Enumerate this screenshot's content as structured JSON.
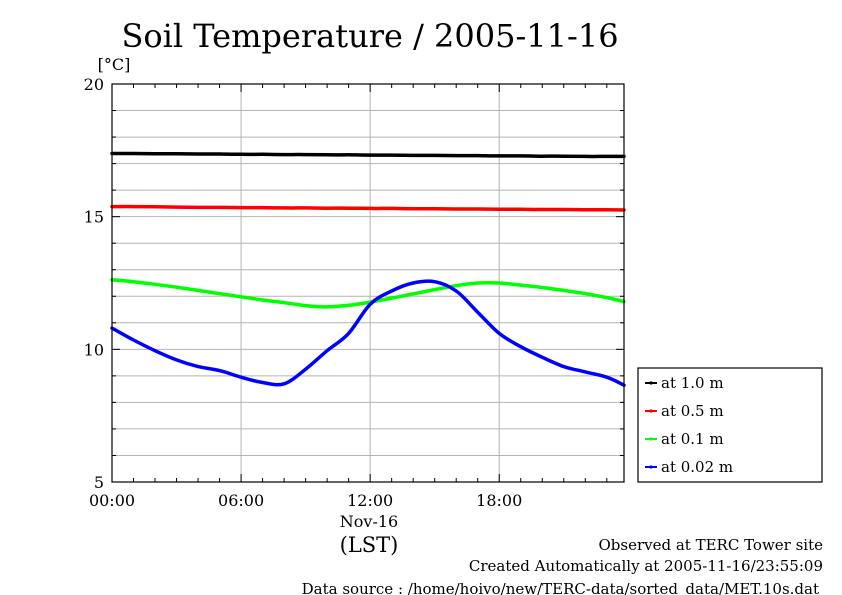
{
  "chart_data": {
    "type": "line",
    "title": "Soil Temperature / 2005-11-16",
    "ylabel": "[°C]",
    "ylim": [
      5,
      20
    ],
    "yticks": [
      "20",
      "15",
      "10",
      "5"
    ],
    "xlim": [
      0,
      23.8
    ],
    "xticks": [
      "00:00",
      "06:00",
      "12:00",
      "18:00"
    ],
    "xdate": "Nov-16",
    "xunit": "(LST)",
    "grid": true,
    "legend_position": "right",
    "x": [
      0,
      1,
      2,
      3,
      4,
      5,
      6,
      7,
      8,
      9,
      10,
      11,
      12,
      13,
      14,
      15,
      16,
      17,
      18,
      19,
      20,
      21,
      22,
      23,
      23.8
    ],
    "series": [
      {
        "name": "at 1.0 m",
        "color": "#000000",
        "values": [
          17.38,
          17.38,
          17.37,
          17.37,
          17.36,
          17.36,
          17.35,
          17.35,
          17.34,
          17.34,
          17.33,
          17.33,
          17.32,
          17.32,
          17.31,
          17.31,
          17.3,
          17.3,
          17.29,
          17.29,
          17.28,
          17.28,
          17.27,
          17.27,
          17.27
        ]
      },
      {
        "name": "at 0.5 m",
        "color": "#ff0000",
        "values": [
          15.38,
          15.38,
          15.37,
          15.36,
          15.35,
          15.35,
          15.34,
          15.34,
          15.33,
          15.33,
          15.32,
          15.32,
          15.31,
          15.31,
          15.3,
          15.3,
          15.29,
          15.29,
          15.28,
          15.28,
          15.27,
          15.27,
          15.26,
          15.26,
          15.25
        ]
      },
      {
        "name": "at 0.1 m",
        "color": "#00ff00",
        "values": [
          12.62,
          12.55,
          12.45,
          12.34,
          12.22,
          12.1,
          11.98,
          11.86,
          11.76,
          11.65,
          11.6,
          11.66,
          11.78,
          11.93,
          12.09,
          12.25,
          12.4,
          12.5,
          12.5,
          12.42,
          12.33,
          12.22,
          12.1,
          11.95,
          11.8
        ]
      },
      {
        "name": "at 0.02 m",
        "color": "#0000ff",
        "values": [
          10.8,
          10.35,
          9.95,
          9.6,
          9.35,
          9.2,
          8.95,
          8.75,
          8.7,
          9.25,
          9.95,
          10.6,
          11.7,
          12.2,
          12.5,
          12.55,
          12.2,
          11.4,
          10.6,
          10.1,
          9.7,
          9.35,
          9.15,
          8.95,
          8.65
        ]
      }
    ]
  },
  "footer": {
    "line1": "Observed at TERC Tower site",
    "line2": "Created Automatically at 2005-11-16/23:55:09",
    "line3": "Data source : /home/hoivo/new/TERC-data/sorted_data/MET.10s.dat"
  }
}
